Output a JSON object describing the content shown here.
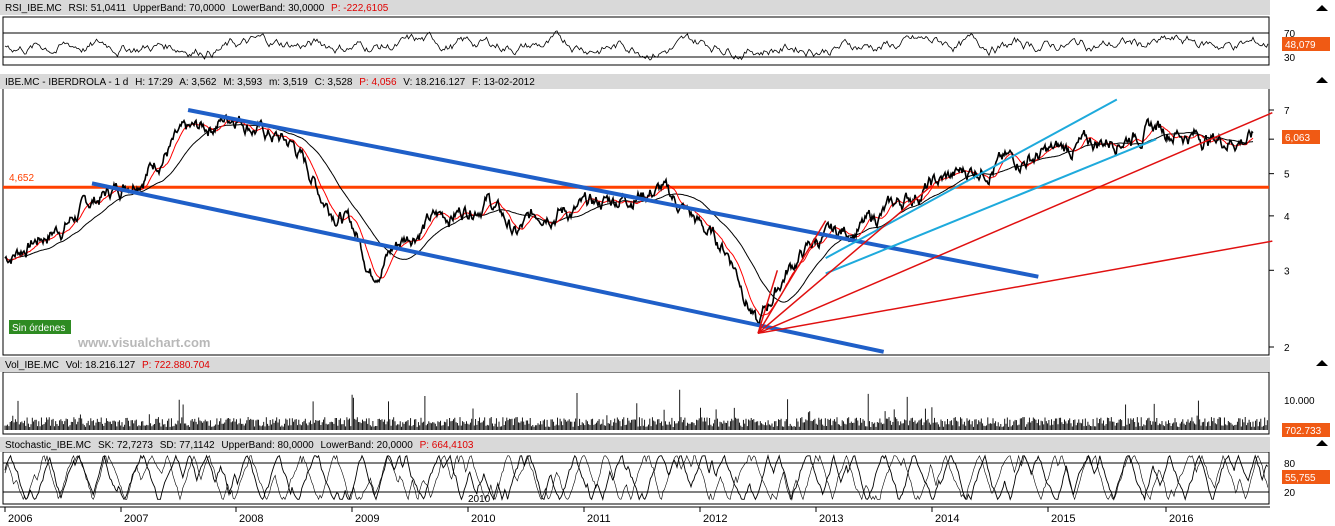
{
  "colors": {
    "price_line": "#000000",
    "ma_fast": "#ff0000",
    "ma_slow": "#000000",
    "channel": "#1f5fc8",
    "channel_light": "#1eaadc",
    "fan": "#e01010",
    "support": "#ff4000",
    "badge_orange": "#f05a14",
    "badge_green": "#2e8b22",
    "header_bg": "#d9d9d9"
  },
  "panels": {
    "rsi": {
      "header": [
        "RSI_IBE.MC",
        "RSI: 51,0411",
        "UpperBand: 70,0000",
        "LowerBand: 30,0000"
      ],
      "header_red": "P: -222,6105",
      "ticks": [
        "70",
        "30"
      ],
      "badge": "48,079"
    },
    "price": {
      "header": [
        "IBE.MC - IBERDROLA - 1 d",
        "H: 17:29",
        "A: 3,562",
        "M: 3,593",
        "m: 3,519",
        "C: 3,528"
      ],
      "header_red": "P: 4,056",
      "header_tail": [
        "V: 18.216.127",
        "F: 13-02-2012"
      ],
      "ticks": [
        "7",
        "6",
        "5",
        "4",
        "3",
        "2"
      ],
      "support_label": "4,652",
      "badge": "6,063",
      "orders_badge": "Sin órdenes",
      "watermark": "www.visualchart.com"
    },
    "volume": {
      "header": [
        "Vol_IBE.MC",
        "Vol: 18.216.127"
      ],
      "header_red": "P: 722.880.704",
      "ticks": [
        "10.000"
      ],
      "badge": "702.733"
    },
    "stochastic": {
      "header": [
        "Stochastic_IBE.MC",
        "SK: 72,7273",
        "SD: 77,1142",
        "UpperBand: 80,0000",
        "LowerBand: 20,0000"
      ],
      "header_red": "P: 664,4103",
      "ticks": [
        "80",
        "20"
      ],
      "badge": "55,755",
      "inner_year": "2010"
    }
  },
  "x_axis": {
    "labels": [
      "2006",
      "2007",
      "2008",
      "2009",
      "2010",
      "2011",
      "2012",
      "2013",
      "2014",
      "2015",
      "2016"
    ]
  },
  "chart_data": {
    "type": "line",
    "title": "IBE.MC - IBERDROLA - 1 d",
    "x": [
      "2006",
      "2007",
      "2008",
      "2009",
      "2010",
      "2011",
      "2012",
      "2013",
      "2014",
      "2015",
      "2016"
    ],
    "series": [
      {
        "name": "IBE.MC",
        "points": [
          [
            "2006-01",
            3.2
          ],
          [
            "2006-04",
            3.5
          ],
          [
            "2006-07",
            3.8
          ],
          [
            "2006-10",
            4.3
          ],
          [
            "2007-01",
            4.7
          ],
          [
            "2007-04",
            5.2
          ],
          [
            "2007-07",
            6.0
          ],
          [
            "2007-10",
            6.4
          ],
          [
            "2008-01",
            6.9
          ],
          [
            "2008-04",
            6.2
          ],
          [
            "2008-07",
            5.8
          ],
          [
            "2008-10",
            4.4
          ],
          [
            "2009-01",
            3.8
          ],
          [
            "2009-03",
            3.0
          ],
          [
            "2009-06",
            3.5
          ],
          [
            "2009-09",
            3.9
          ],
          [
            "2009-12",
            4.1
          ],
          [
            "2010-03",
            4.4
          ],
          [
            "2010-06",
            3.6
          ],
          [
            "2010-09",
            4.2
          ],
          [
            "2010-12",
            4.1
          ],
          [
            "2011-03",
            4.3
          ],
          [
            "2011-06",
            4.5
          ],
          [
            "2011-09",
            4.6
          ],
          [
            "2012-01",
            3.8
          ],
          [
            "2012-04",
            3.3
          ],
          [
            "2012-07",
            2.2
          ],
          [
            "2012-10",
            3.0
          ],
          [
            "2013-01",
            3.5
          ],
          [
            "2013-06",
            3.8
          ],
          [
            "2013-12",
            4.6
          ],
          [
            "2014-06",
            5.2
          ],
          [
            "2014-12",
            5.5
          ],
          [
            "2015-06",
            5.9
          ],
          [
            "2015-12",
            6.4
          ],
          [
            "2016-06",
            6.0
          ],
          [
            "2016-10",
            6.06
          ]
        ]
      }
    ],
    "ylabel": "",
    "ylim": [
      2,
      7.5
    ],
    "y_scale": "log",
    "horizontal_line": 4.652,
    "indicators": {
      "rsi": {
        "value": 51.0411,
        "upper": 70,
        "lower": 30
      },
      "volume": {
        "value": 18216127
      },
      "stochastic": {
        "sk": 72.7273,
        "sd": 77.1142,
        "upper": 80,
        "lower": 20
      }
    }
  }
}
